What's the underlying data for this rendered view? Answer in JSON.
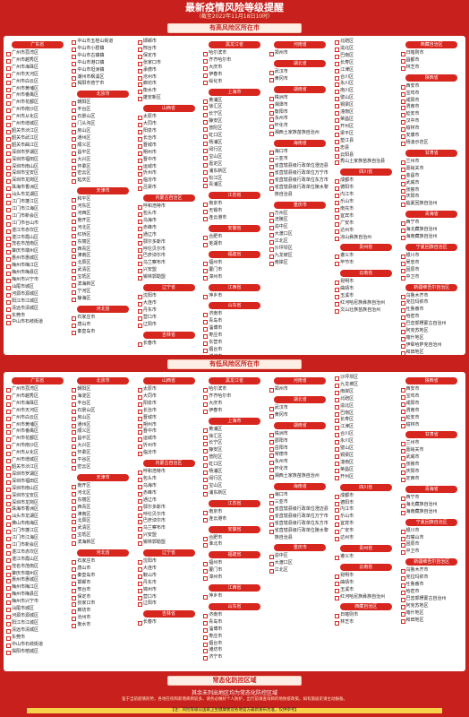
{
  "header": {
    "title": "最新疫情风险等级提醒",
    "subtitle": "（截至2022年11月18日10时）"
  },
  "sections": [
    {
      "title": "有高风险区所在市",
      "columns": [
        [
          {
            "name": "广东省",
            "items": [
              "广州市荔湾区",
              "广州市越秀区",
              "广州市海珠区",
              "广州市天河区",
              "广州市白云区",
              "广州市黄埔区",
              "广州市番禺区",
              "广州市花都区",
              "广州市南沙区",
              "广州市从化区",
              "广州市增城区",
              "韶关市浈江区",
              "韶关市武江区",
              "韶关市曲江区",
              "深圳市罗湖区",
              "深圳市福田区",
              "深圳市南山区",
              "深圳市宝安区",
              "深圳市龙岗区",
              "珠海市香洲区",
              "汕头市龙湖区",
              "江门市蓬江区",
              "江门市江海区",
              "江门市新会区",
              "江门市台山市",
              "湛江市赤坎区",
              "湛江市霞山区",
              "茂名市茂南区",
              "肇庆市端州区",
              "惠州市惠城区",
              "梅州市梅江区",
              "梅州市梅县区",
              "梅州市兴宁市",
              "汕尾市城区",
              "河源市源城区",
              "阳江市江城区",
              "清远市清城区",
              "东莞市",
              "中山市石岐街道"
            ]
          }
        ],
        [
          {
            "items": [
              "中山市五桂山街道",
              "中山市小榄镇",
              "中山市古镇镇",
              "中山市港口镇",
              "中山市坦洲镇",
              "潮州市枫溪区",
              "揭阳市普宁市"
            ]
          },
          {
            "name": "北京市",
            "items": [
              "朝阳区",
              "丰台区",
              "石景山区",
              "门头沟区",
              "房山区",
              "通州区",
              "顺义区",
              "昌平区",
              "大兴区",
              "怀柔区",
              "密云区",
              "延庆区"
            ]
          },
          {
            "name": "天津市",
            "items": [
              "和平区",
              "河东区",
              "河西区",
              "南开区",
              "河北区",
              "红桥区",
              "东丽区",
              "西青区",
              "津南区",
              "北辰区",
              "武清区",
              "宝坻区",
              "滨海新区",
              "宁河区",
              "静海区"
            ]
          },
          {
            "name": "河北省",
            "items": [
              "石家庄市",
              "唐山市",
              "秦皇岛市"
            ]
          }
        ],
        [
          {
            "items": [
              "邯郸市",
              "邢台市",
              "保定市",
              "张家口市",
              "承德市",
              "沧州市",
              "廊坊市",
              "衡水市",
              "雄安新区"
            ]
          },
          {
            "name": "山西省",
            "items": [
              "太原市",
              "大同市",
              "阳泉市",
              "长治市",
              "晋城市",
              "朔州市",
              "晋中市",
              "运城市",
              "忻州市",
              "临汾市",
              "吕梁市"
            ]
          },
          {
            "name": "内蒙古自治区",
            "items": [
              "呼和浩特市",
              "包头市",
              "乌海市",
              "赤峰市",
              "通辽市",
              "鄂尔多斯市",
              "呼伦贝尔市",
              "巴彦淖尔市",
              "乌兰察布市",
              "兴安盟",
              "锡林郭勒盟"
            ]
          },
          {
            "name": "辽宁省",
            "items": [
              "沈阳市",
              "大连市",
              "丹东市",
              "营口市",
              "辽阳市"
            ]
          },
          {
            "name": "吉林省",
            "items": [
              "长春市"
            ]
          }
        ],
        [
          {
            "name": "黑龙江省",
            "items": [
              "哈尔滨市",
              "齐齐哈尔市",
              "大庆市",
              "伊春市",
              "绥化市"
            ]
          },
          {
            "name": "上海市",
            "items": [
              "黄浦区",
              "徐汇区",
              "长宁区",
              "静安区",
              "普陀区",
              "虹口区",
              "杨浦区",
              "闵行区",
              "宝山区",
              "嘉定区",
              "浦东新区",
              "松江区",
              "青浦区"
            ]
          },
          {
            "name": "江苏省",
            "items": [
              "南京市",
              "无锡市",
              "连云港市"
            ]
          },
          {
            "name": "安徽省",
            "items": [
              "合肥市",
              "芜湖市"
            ]
          },
          {
            "name": "福建省",
            "items": [
              "福州市",
              "厦门市",
              "漳州市"
            ]
          },
          {
            "name": "江西省",
            "items": [
              "萍乡市"
            ]
          },
          {
            "name": "山东省",
            "items": [
              "济南市",
              "青岛市",
              "淄博市",
              "枣庄市",
              "东营市",
              "烟台市",
              "潍坊市",
              "济宁市",
              "泰安市"
            ]
          }
        ],
        [
          {
            "name": "河南省",
            "items": [
              "郑州市"
            ]
          },
          {
            "name": "湖北省",
            "items": [
              "武汉市",
              "黄冈市"
            ]
          },
          {
            "name": "湖南省",
            "items": [
              "株洲市",
              "湘潭市",
              "衡阳市",
              "永州市",
              "怀化市",
              "湘西土家族苗族自治州"
            ]
          },
          {
            "name": "海南省",
            "items": [
              "海口市",
              "三亚市",
              "省直辖县级行政单位澄迈县",
              "省直辖县级行政单位万宁市",
              "省直辖县级行政单位东方市",
              "省直辖县级行政单位陵水黎族自治县"
            ]
          },
          {
            "name": "重庆市",
            "items": [
              "万州区",
              "涪陵区",
              "渝中区",
              "大渡口区",
              "江北区",
              "沙坪坝区",
              "九龙坡区",
              "南岸区"
            ]
          }
        ],
        [
          {
            "items": [
              "北碚区",
              "渝北区",
              "巴南区",
              "长寿区",
              "江津区",
              "合川区",
              "永川区",
              "南川区",
              "璧山区",
              "铜梁区",
              "潼南区",
              "荣昌区",
              "开州区",
              "梁平区",
              "垫江县",
              "忠县",
              "云阳县",
              "秀山土家族苗族自治县"
            ]
          },
          {
            "name": "四川省",
            "items": [
              "成都市",
              "德阳市",
              "内江市",
              "乐山市",
              "南充市",
              "宜宾市",
              "广安市",
              "达州市",
              "凉山彝族自治州"
            ]
          },
          {
            "name": "贵州省",
            "items": [
              "遵义市",
              "毕节市"
            ]
          },
          {
            "name": "云南省",
            "items": [
              "昆明市",
              "曲靖市",
              "玉溪市",
              "红河哈尼族彝族自治州",
              "文山壮族苗族自治州"
            ]
          }
        ],
        [
          {
            "name": "西藏自治区",
            "items": [
              "日喀则市",
              "昌都市",
              "林芝市"
            ]
          },
          {
            "name": "陕西省",
            "items": [
              "西安市",
              "宝鸡市",
              "咸阳市",
              "渭南市",
              "延安市",
              "汉中市",
              "榆林市",
              "安康市",
              "杨凌示范区"
            ]
          },
          {
            "name": "甘肃省",
            "items": [
              "兰州市",
              "嘉峪关市",
              "金昌市",
              "武威市",
              "张掖市",
              "庆阳市",
              "临夏回族自治州"
            ]
          },
          {
            "name": "青海省",
            "items": [
              "西宁市",
              "海北藏族自治州",
              "海南藏族自治州"
            ]
          },
          {
            "name": "宁夏回族自治区",
            "items": [
              "银川市",
              "吴忠市",
              "固原市",
              "中卫市"
            ]
          },
          {
            "name": "新疆维吾尔自治区",
            "items": [
              "乌鲁木齐市",
              "克拉玛依市",
              "吐鲁番市",
              "哈密市",
              "巴音郭楞蒙古自治州",
              "阿克苏地区",
              "喀什地区",
              "伊犁哈萨克自治州",
              "和田地区"
            ]
          }
        ]
      ]
    },
    {
      "title": "有低风险区所在市",
      "columns": [
        [
          {
            "name": "广东省",
            "items": [
              "广州市荔湾区",
              "广州市越秀区",
              "广州市海珠区",
              "广州市天河区",
              "广州市白云区",
              "广州市黄埔区",
              "广州市番禺区",
              "广州市花都区",
              "广州市南沙区",
              "广州市从化区",
              "广州市增城区",
              "韶关市浈江区",
              "深圳市罗湖区",
              "深圳市福田区",
              "深圳市南山区",
              "深圳市宝安区",
              "深圳市龙岗区",
              "珠海市香洲区",
              "汕头市龙湖区",
              "佛山市南海区",
              "江门市蓬江区",
              "江门市江海区",
              "江门市新会区",
              "湛江市赤坎区",
              "湛江市霞山区",
              "茂名市茂南区",
              "肇庆市端州区",
              "惠州市惠城区",
              "梅州市梅江区",
              "梅州市梅县区",
              "梅州市兴宁市",
              "汕尾市城区",
              "河源市源城区",
              "阳江市江城区",
              "清远市清城区",
              "东莞市",
              "中山市石岐街道",
              "揭阳市榕城区"
            ]
          }
        ],
        [
          {
            "name": "北京市",
            "items": [
              "朝阳区",
              "海淀区",
              "丰台区",
              "石景山区",
              "房山区",
              "通州区",
              "顺义区",
              "昌平区",
              "大兴区",
              "怀柔区",
              "平谷区",
              "密云区"
            ]
          },
          {
            "name": "天津市",
            "items": [
              "南开区",
              "河北区",
              "东丽区",
              "西青区",
              "津南区",
              "北辰区",
              "武清区",
              "宝坻区",
              "滨海新区"
            ]
          },
          {
            "name": "河北省",
            "items": [
              "石家庄市",
              "唐山市",
              "秦皇岛市",
              "邯郸市",
              "邢台市",
              "保定市",
              "张家口市",
              "廊坊市",
              "沧州市",
              "衡水市"
            ]
          }
        ],
        [
          {
            "name": "山西省",
            "items": [
              "太原市",
              "大同市",
              "阳泉市",
              "长治市",
              "晋城市",
              "朔州市",
              "晋中市",
              "运城市",
              "忻州市",
              "临汾市"
            ]
          },
          {
            "name": "内蒙古自治区",
            "items": [
              "呼和浩特市",
              "包头市",
              "乌海市",
              "赤峰市",
              "通辽市",
              "鄂尔多斯市",
              "呼伦贝尔市",
              "巴彦淖尔市",
              "乌兰察布市",
              "兴安盟",
              "锡林郭勒盟"
            ]
          },
          {
            "name": "辽宁省",
            "items": [
              "沈阳市",
              "大连市",
              "鞍山市",
              "丹东市",
              "锦州市",
              "营口市",
              "辽阳市"
            ]
          },
          {
            "name": "吉林省",
            "items": [
              "长春市"
            ]
          }
        ],
        [
          {
            "name": "黑龙江省",
            "items": [
              "哈尔滨市",
              "齐齐哈尔市",
              "大庆市",
              "伊春市"
            ]
          },
          {
            "name": "上海市",
            "items": [
              "黄浦区",
              "徐汇区",
              "长宁区",
              "静安区",
              "普陀区",
              "虹口区",
              "杨浦区",
              "闵行区",
              "宝山区",
              "浦东新区"
            ]
          },
          {
            "name": "江苏省",
            "items": [
              "南京市",
              "连云港市"
            ]
          },
          {
            "name": "安徽省",
            "items": [
              "合肥市",
              "淮北市"
            ]
          },
          {
            "name": "福建省",
            "items": [
              "福州市",
              "厦门市",
              "漳州市"
            ]
          },
          {
            "name": "江西省",
            "items": [
              "萍乡市"
            ]
          },
          {
            "name": "山东省",
            "items": [
              "济南市",
              "青岛市",
              "淄博市",
              "枣庄市",
              "烟台市",
              "潍坊市",
              "济宁市"
            ]
          }
        ],
        [
          {
            "name": "河南省",
            "items": [
              "郑州市"
            ]
          },
          {
            "name": "湖北省",
            "items": [
              "武汉市",
              "黄冈市"
            ]
          },
          {
            "name": "湖南省",
            "items": [
              "株洲市",
              "邵阳市",
              "岳阳市",
              "常德市",
              "永州市",
              "怀化市",
              "湘西土家族苗族自治州"
            ]
          },
          {
            "name": "海南省",
            "items": [
              "海口市",
              "三亚市",
              "省直辖县级行政单位澄迈县",
              "省直辖县级行政单位万宁市",
              "省直辖县级行政单位东方市",
              "省直辖县级行政单位陵水黎族自治县"
            ]
          },
          {
            "name": "重庆市",
            "items": [
              "渝中区",
              "大渡口区",
              "江北区"
            ]
          }
        ],
        [
          {
            "items": [
              "沙坪坝区",
              "九龙坡区",
              "南岸区",
              "北碚区",
              "渝北区",
              "巴南区",
              "长寿区",
              "江津区",
              "合川区",
              "永川区",
              "璧山区",
              "铜梁区",
              "潼南区",
              "荣昌区",
              "开州区"
            ]
          },
          {
            "name": "四川省",
            "items": [
              "成都市",
              "德阳市",
              "内江市",
              "乐山市",
              "宜宾市",
              "广安市",
              "达州市"
            ]
          },
          {
            "name": "贵州省",
            "items": [
              "遵义市"
            ]
          },
          {
            "name": "云南省",
            "items": [
              "昆明市",
              "曲靖市",
              "玉溪市",
              "红河哈尼族彝族自治州"
            ]
          },
          {
            "name": "西藏自治区",
            "items": [
              "日喀则市",
              "林芝市"
            ]
          }
        ],
        [
          {
            "name": "陕西省",
            "items": [
              "西安市",
              "宝鸡市",
              "咸阳市",
              "渭南市",
              "延安市",
              "榆林市"
            ]
          },
          {
            "name": "甘肃省",
            "items": [
              "兰州市",
              "嘉峪关市",
              "武威市",
              "张掖市",
              "庆阳市",
              "定西市"
            ]
          },
          {
            "name": "青海省",
            "items": [
              "西宁市",
              "海北藏族自治州",
              "海南藏族自治州"
            ]
          },
          {
            "name": "宁夏回族自治区",
            "items": [
              "银川市",
              "石嘴山市",
              "固原市",
              "中卫市"
            ]
          },
          {
            "name": "新疆维吾尔自治区",
            "items": [
              "乌鲁木齐市",
              "克拉玛依市",
              "吐鲁番市",
              "哈密市",
              "巴音郭楞蒙古自治州",
              "阿克苏地区",
              "喀什地区",
              "和田地区"
            ]
          }
        ]
      ]
    }
  ],
  "normal": {
    "title": "常态化防控区域",
    "text": "其余未列出地区均为常态化防控区域"
  },
  "footer": [
    "鉴于当前疫情形势，各地在校和新增病例较多，请务必做好个人防护，出行前请查询目的地防疫政策，如有旅居史请主动报备。",
    "【注：风险等级以国家卫生健康委及各地官方最新发布为准，仅供参考】"
  ]
}
